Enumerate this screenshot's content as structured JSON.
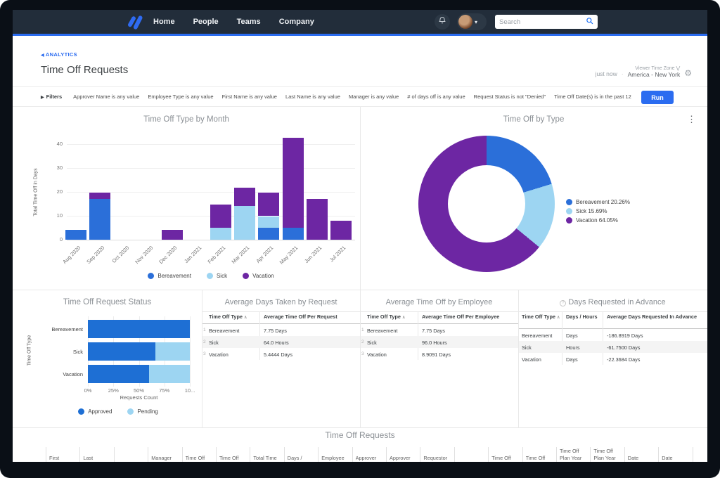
{
  "colors": {
    "frame_bg": "#0a0f16",
    "nav_bg": "#222d3a",
    "accent_blue": "#2b6cf0",
    "brand_blue": "#2f6bf2",
    "bereavement_blue": "#2b6fd9",
    "sick_light_blue": "#9dd5f2",
    "vacation_purple": "#6d26a3",
    "approved_blue": "#1e6fd4",
    "pending_light_blue": "#9dd5f2"
  },
  "nav": {
    "menu": [
      "Home",
      "People",
      "Teams",
      "Company"
    ],
    "search_placeholder": "Search"
  },
  "header": {
    "breadcrumb": "ANALYTICS",
    "title": "Time Off Requests",
    "updated": "just now",
    "timezone_label": "Viewer Time Zone",
    "timezone_value": "America - New York"
  },
  "filters": {
    "label": "Filters",
    "chips": [
      "Approver Name is any value",
      "Employee Type is any value",
      "First Name is any value",
      "Last Name is any value",
      "Manager is any value",
      "# of days off is any value",
      "Request Status is not \"Denied\"",
      "Time Off Date(s) is in the past 12"
    ],
    "run_label": "Run"
  },
  "chart_data": [
    {
      "type": "bar",
      "stacked": true,
      "title": "Time Off Type by Month",
      "ylabel": "Total Time Off in Days",
      "yticks": [
        0,
        10,
        20,
        30,
        40
      ],
      "ylim": [
        0,
        44
      ],
      "categories": [
        "Aug 2020",
        "Sep 2020",
        "Oct 2020",
        "Nov 2020",
        "Dec 2020",
        "Jan 2021",
        "Feb 2021",
        "Mar 2021",
        "Apr 2021",
        "May 2021",
        "Jun 2021",
        "Jul 2021"
      ],
      "series": [
        {
          "name": "Bereavement",
          "color": "#2b6fd9",
          "values": [
            4,
            17,
            0,
            0,
            0,
            0,
            0,
            0,
            5,
            5,
            0,
            0
          ]
        },
        {
          "name": "Sick",
          "color": "#9dd5f2",
          "values": [
            0,
            0,
            0,
            0,
            0,
            0,
            5,
            14,
            5,
            0,
            0,
            0
          ]
        },
        {
          "name": "Vacation",
          "color": "#6d26a3",
          "values": [
            0,
            3,
            0,
            0,
            4,
            0,
            10,
            8,
            10,
            38,
            17,
            8
          ]
        }
      ]
    },
    {
      "type": "pie",
      "donut": true,
      "title": "Time Off by Type",
      "slices": [
        {
          "label": "Bereavement",
          "pct": 20.26,
          "color": "#2b6fd9"
        },
        {
          "label": "Sick",
          "pct": 15.69,
          "color": "#9dd5f2"
        },
        {
          "label": "Vacation",
          "pct": 64.05,
          "color": "#6d26a3"
        }
      ],
      "legend_position": "right"
    },
    {
      "type": "bar-horizontal",
      "stacked": true,
      "title": "Time Off Request Status",
      "xlabel": "Requests Count",
      "ylabel": "Time Off Type",
      "xticks": [
        "0%",
        "25%",
        "50%",
        "75%",
        "10..."
      ],
      "categories": [
        "Bereavement",
        "Sick",
        "Vacation"
      ],
      "series": [
        {
          "name": "Approved",
          "color": "#1e6fd4",
          "values": [
            100,
            66,
            60
          ]
        },
        {
          "name": "Pending",
          "color": "#9dd5f2",
          "values": [
            0,
            34,
            40
          ]
        }
      ]
    },
    {
      "type": "table",
      "title": "Average Days Taken by Request",
      "columns": [
        "Time Off Type",
        "Average Time Off Per Request"
      ],
      "sort_column": 0,
      "rows": [
        [
          "Bereavement",
          "7.75 Days"
        ],
        [
          "Sick",
          "64.0 Hours"
        ],
        [
          "Vacation",
          "5.4444 Days"
        ]
      ]
    },
    {
      "type": "table",
      "title": "Average Time Off by Employee",
      "columns": [
        "Time Off Type",
        "Average Time Off Per Employee"
      ],
      "sort_column": 0,
      "rows": [
        [
          "Bereavement",
          "7.75 Days"
        ],
        [
          "Sick",
          "96.0 Hours"
        ],
        [
          "Vacation",
          "8.9091 Days"
        ]
      ]
    },
    {
      "type": "table",
      "title": "Days Requested in Advance",
      "has_help_icon": true,
      "columns": [
        "Time Off Type",
        "Days / Hours",
        "Average Days Requested In Advance"
      ],
      "sort_column": 0,
      "rows": [
        [
          "Bereavement",
          "Days",
          "-186.8919 Days"
        ],
        [
          "Sick",
          "Hours",
          "-61.7500 Days"
        ],
        [
          "Vacation",
          "Days",
          "-22.3684 Days"
        ]
      ]
    }
  ],
  "bottom_table": {
    "title": "Time Off Requests",
    "columns": [
      [
        "First"
      ],
      [
        "Last"
      ],
      [
        ""
      ],
      [
        "Manager"
      ],
      [
        "Time Off"
      ],
      [
        "Time Off"
      ],
      [
        "Total Time"
      ],
      [
        "Days /"
      ],
      [
        "Employee"
      ],
      [
        "Approver"
      ],
      [
        "Approver"
      ],
      [
        "Requestor"
      ],
      [
        ""
      ],
      [
        "Time Off"
      ],
      [
        "Time Off"
      ],
      [
        "Time Off",
        "Plan Year"
      ],
      [
        "Time Off",
        "Plan Year"
      ],
      [
        "Date"
      ],
      [
        "Date"
      ],
      [
        ""
      ]
    ]
  }
}
